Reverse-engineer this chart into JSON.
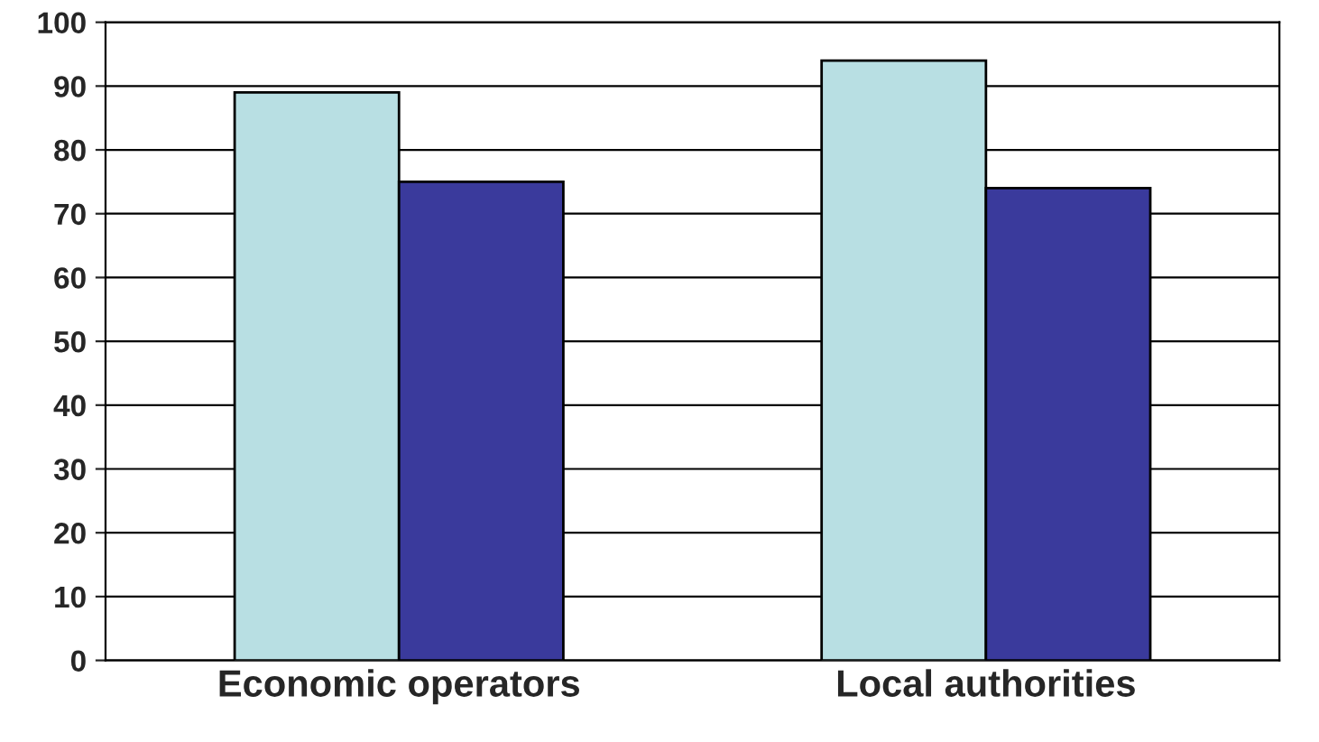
{
  "chart_data": {
    "type": "bar",
    "categories": [
      "Economic operators",
      "Local authorities"
    ],
    "series": [
      {
        "color": "#b8dfe3",
        "values": [
          89,
          94
        ]
      },
      {
        "color": "#3a3a9c",
        "values": [
          75,
          74
        ]
      }
    ],
    "ylim": [
      0,
      100
    ],
    "yticks": [
      0,
      10,
      20,
      30,
      40,
      50,
      60,
      70,
      80,
      90,
      100
    ],
    "grid": "y"
  }
}
